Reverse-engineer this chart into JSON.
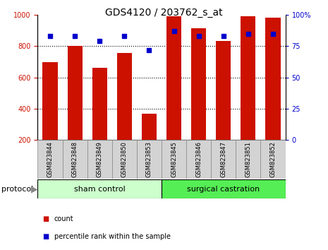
{
  "title": "GDS4120 / 203762_s_at",
  "samples": [
    "GSM823844",
    "GSM823848",
    "GSM823849",
    "GSM823850",
    "GSM823853",
    "GSM823845",
    "GSM823846",
    "GSM823847",
    "GSM823851",
    "GSM823852"
  ],
  "counts": [
    700,
    800,
    660,
    755,
    370,
    990,
    915,
    835,
    990,
    985
  ],
  "percentiles": [
    83,
    83,
    79,
    83,
    72,
    87,
    83,
    83,
    85,
    85
  ],
  "group1_label": "sham control",
  "group2_label": "surgical castration",
  "group1_indices": [
    0,
    1,
    2,
    3,
    4
  ],
  "group2_indices": [
    5,
    6,
    7,
    8,
    9
  ],
  "group1_color": "#ccffcc",
  "group2_color": "#55ee55",
  "bar_color": "#cc1100",
  "dot_color": "#0000cc",
  "left_ylim": [
    200,
    1000
  ],
  "right_ylim": [
    0,
    100
  ],
  "left_yticks": [
    200,
    400,
    600,
    800,
    1000
  ],
  "right_yticks": [
    0,
    25,
    50,
    75,
    100
  ],
  "right_yticklabels": [
    "0",
    "25",
    "50",
    "75",
    "100%"
  ],
  "grid_values": [
    400,
    600,
    800
  ],
  "legend_count_label": "count",
  "legend_pct_label": "percentile rank within the sample",
  "bar_color_label": "#cc1100",
  "dot_color_label": "#0000cc",
  "bar_width": 0.6,
  "title_fontsize": 10,
  "tick_fontsize": 7,
  "sample_fontsize": 6,
  "group_fontsize": 8,
  "legend_fontsize": 7,
  "protocol_fontsize": 8
}
